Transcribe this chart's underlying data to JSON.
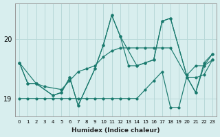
{
  "xlabel": "Humidex (Indice chaleur)",
  "ylabel": "",
  "bg_color": "#d8eeee",
  "grid_color": "#b8d8d8",
  "line_color": "#1a7a6e",
  "xlim": [
    -0.5,
    23.5
  ],
  "ylim": [
    18.7,
    20.6
  ],
  "yticks": [
    19,
    20
  ],
  "xticks": [
    0,
    1,
    2,
    3,
    4,
    5,
    6,
    7,
    8,
    9,
    10,
    11,
    12,
    13,
    14,
    15,
    16,
    17,
    18,
    19,
    20,
    21,
    22,
    23
  ],
  "line1_x": [
    0,
    1,
    2,
    3,
    4,
    5,
    6,
    7,
    8,
    9,
    10,
    11,
    12,
    13,
    14,
    15,
    16,
    17,
    18,
    19,
    20,
    21,
    22,
    23
  ],
  "line1_y": [
    19.0,
    19.0,
    19.0,
    19.0,
    19.0,
    19.0,
    19.0,
    19.0,
    19.0,
    19.0,
    19.0,
    19.0,
    19.0,
    19.0,
    19.0,
    19.15,
    19.3,
    19.45,
    18.85,
    18.85,
    19.4,
    19.55,
    19.55,
    19.65
  ],
  "line2_x": [
    0,
    1,
    2,
    3,
    5,
    6,
    7,
    8,
    9,
    10,
    11,
    12,
    13,
    14,
    15,
    16,
    17,
    18,
    20,
    21,
    22,
    23
  ],
  "line2_y": [
    19.6,
    19.25,
    19.25,
    19.2,
    19.15,
    19.3,
    19.45,
    19.5,
    19.55,
    19.7,
    19.8,
    19.85,
    19.85,
    19.85,
    19.85,
    19.85,
    19.85,
    19.85,
    19.35,
    19.35,
    19.4,
    19.65
  ],
  "line3_x": [
    0,
    1,
    2,
    4,
    5,
    6,
    7,
    9,
    10,
    11,
    12,
    13,
    14,
    15,
    16,
    17,
    18,
    20,
    21,
    22,
    23
  ],
  "line3_y": [
    19.6,
    19.25,
    19.25,
    19.05,
    19.1,
    19.35,
    18.88,
    19.5,
    19.9,
    20.4,
    20.05,
    19.55,
    19.55,
    19.6,
    19.65,
    20.3,
    20.35,
    19.35,
    19.1,
    19.55,
    19.75
  ],
  "line4_x": [
    0,
    2,
    4,
    5,
    6,
    7,
    9,
    10,
    11,
    12,
    14,
    15,
    16,
    17,
    18,
    20,
    21,
    22,
    23
  ],
  "line4_y": [
    19.6,
    19.25,
    19.05,
    19.1,
    19.35,
    18.88,
    19.5,
    19.9,
    20.4,
    20.05,
    19.55,
    19.6,
    19.65,
    20.3,
    20.35,
    19.35,
    19.1,
    19.6,
    19.75
  ]
}
